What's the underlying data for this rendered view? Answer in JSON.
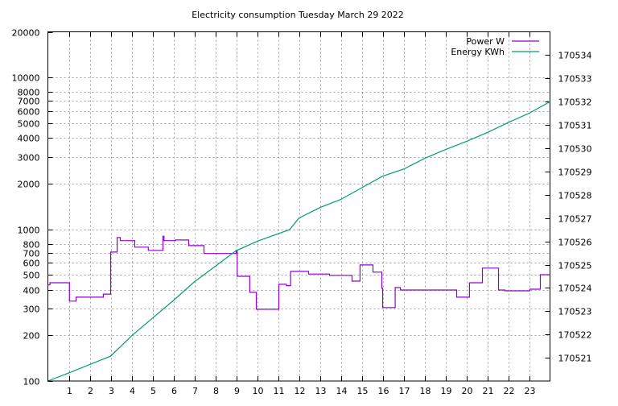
{
  "chart_data": {
    "type": "line",
    "title": "Electricity consumption Tuesday March 29 2022",
    "xlabel": "",
    "ylabel": "",
    "y2label": "",
    "xlim": [
      0,
      24
    ],
    "ylim": [
      100,
      20000
    ],
    "yscale": "log",
    "y2lim": [
      170520,
      170535
    ],
    "grid": true,
    "legend_position": "top-right",
    "x_ticks": [
      1,
      2,
      3,
      4,
      5,
      6,
      7,
      8,
      9,
      10,
      11,
      12,
      13,
      14,
      15,
      16,
      17,
      18,
      19,
      20,
      21,
      22,
      23
    ],
    "y_ticks": [
      100,
      200,
      300,
      400,
      500,
      600,
      700,
      800,
      1000,
      2000,
      3000,
      4000,
      5000,
      6000,
      7000,
      8000,
      10000,
      20000
    ],
    "y2_ticks": [
      170521,
      170522,
      170523,
      170524,
      170525,
      170526,
      170527,
      170528,
      170529,
      170530,
      170531,
      170532,
      170533,
      170534
    ],
    "series": [
      {
        "name": "Power W",
        "axis": "y",
        "color": "#9400d3",
        "style": "steps",
        "x": [
          0,
          0.1,
          1.03,
          1.35,
          2.65,
          3.0,
          3.31,
          3.46,
          4.15,
          4.8,
          5.5,
          5.55,
          6.1,
          6.73,
          7.46,
          9.0,
          9.05,
          9.65,
          9.96,
          11.04,
          11.4,
          11.6,
          12.46,
          13.46,
          14.54,
          14.92,
          15.54,
          15.96,
          16.0,
          16.6,
          16.85,
          19.54,
          20.15,
          20.77,
          21.54,
          21.85,
          23.04,
          23.54,
          24
        ],
        "values": [
          430,
          444,
          336,
          357,
          374,
          708,
          883,
          842,
          762,
          726,
          900,
          842,
          850,
          780,
          692,
          725,
          490,
          384,
          297,
          434,
          425,
          528,
          507,
          497,
          455,
          582,
          522,
          408,
          305,
          413,
          398,
          357,
          444,
          555,
          398,
          393,
          403,
          502,
          502
        ]
      },
      {
        "name": "Energy KWh",
        "axis": "y2",
        "color": "#009e73",
        "style": "line",
        "x": [
          0,
          1,
          3,
          4,
          6,
          7,
          9,
          10,
          11.55,
          12,
          13,
          14,
          15,
          16,
          17,
          18,
          19,
          20,
          21,
          22,
          23,
          24
        ],
        "values": [
          170520.0,
          170520.35,
          170521.07,
          170521.94,
          170523.46,
          170524.26,
          170525.6,
          170526.0,
          170526.5,
          170527.0,
          170527.45,
          170527.8,
          170528.3,
          170528.8,
          170529.1,
          170529.56,
          170529.94,
          170530.29,
          170530.67,
          170531.1,
          170531.5,
          170532.0
        ]
      }
    ]
  }
}
